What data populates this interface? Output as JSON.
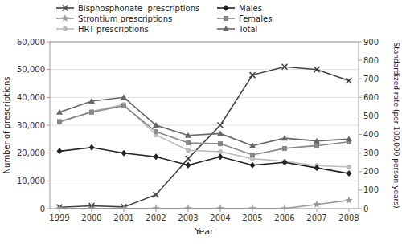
{
  "chart_data": {
    "type": "line",
    "xlabel": "Year",
    "ylabel": "Number of prescriptions",
    "y2label": "Standardized rate (per 100,000 person-years)",
    "x": [
      1999,
      2000,
      2001,
      2002,
      2003,
      2004,
      2005,
      2006,
      2007,
      2008
    ],
    "xlim": [
      1998.7,
      2008.3
    ],
    "xticks": [
      1999,
      2000,
      2001,
      2002,
      2003,
      2004,
      2005,
      2006,
      2007,
      2008
    ],
    "ylim": [
      0,
      60000
    ],
    "yticks": [
      0,
      {
        "value": 10000,
        "label": "10,000"
      },
      {
        "value": 20000,
        "label": "20,000"
      },
      {
        "value": 30000,
        "label": "30,000"
      },
      {
        "value": 40000,
        "label": "40,000"
      },
      {
        "value": 50000,
        "label": "50,000"
      },
      {
        "value": 60000,
        "label": "60,000"
      }
    ],
    "y2lim": [
      0,
      900
    ],
    "y2ticks": [
      0,
      100,
      200,
      300,
      400,
      500,
      600,
      700,
      800,
      900
    ],
    "grid": true,
    "legend": "top",
    "series": [
      {
        "name": "Bisphosphonate  prescriptions",
        "color": "#444444",
        "marker": "x",
        "values": [
          500,
          1000,
          600,
          5000,
          18000,
          30000,
          48000,
          51000,
          50000,
          46000
        ]
      },
      {
        "name": "Strontium prescriptions",
        "color": "#999999",
        "marker": "star",
        "values": [
          50,
          50,
          50,
          50,
          50,
          50,
          50,
          50,
          1500,
          3000
        ]
      },
      {
        "name": "HRT prescriptions",
        "color": "#bbbbbb",
        "marker": "circle",
        "values": [
          31000,
          35000,
          37500,
          26500,
          21000,
          20500,
          18000,
          17000,
          15500,
          15000
        ]
      },
      {
        "name": "Males",
        "color": "#222222",
        "marker": "diamond",
        "axis": "y2",
        "values": [
          310,
          330,
          300,
          280,
          235,
          280,
          235,
          250,
          220,
          190
        ]
      },
      {
        "name": "Females",
        "color": "#888888",
        "marker": "square",
        "axis": "y2",
        "values": [
          470,
          520,
          555,
          415,
          355,
          350,
          290,
          325,
          340,
          360
        ]
      },
      {
        "name": "Total",
        "color": "#666666",
        "marker": "triangle",
        "axis": "y2",
        "values": [
          520,
          580,
          600,
          450,
          395,
          405,
          340,
          380,
          365,
          375
        ]
      }
    ]
  }
}
